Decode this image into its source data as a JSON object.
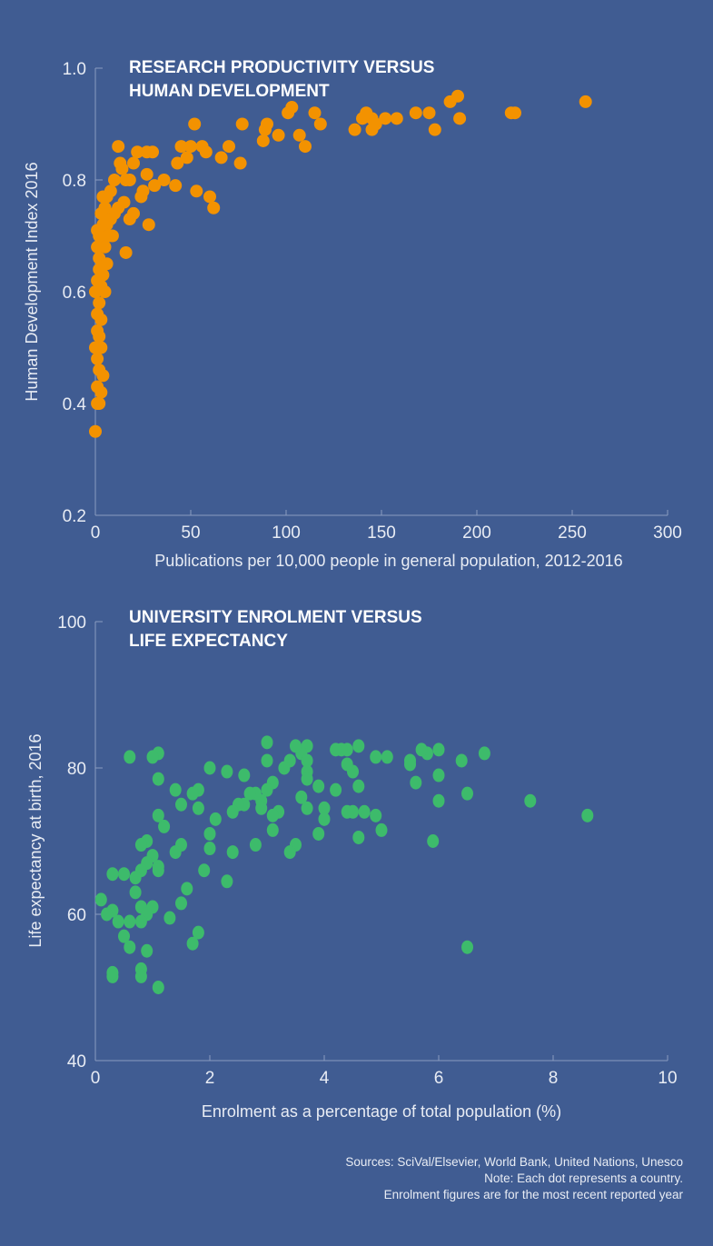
{
  "colors": {
    "background": "#405c92",
    "series_top": "#f39200",
    "series_bottom": "#3dbb6b"
  },
  "chart_data": [
    {
      "type": "scatter",
      "title_lines": [
        "RESEARCH PRODUCTIVITY VERSUS",
        "HUMAN DEVELOPMENT"
      ],
      "xlabel": "Publications per 10,000 people in general population, 2012-2016",
      "ylabel": "Human Development Index 2016",
      "xlim": [
        0,
        300
      ],
      "ylim": [
        0.2,
        1.0
      ],
      "xticks": [
        "0",
        "50",
        "100",
        "150",
        "200",
        "250",
        "300"
      ],
      "yticks": [
        "0.2",
        "0.4",
        "0.6",
        "0.8",
        "1.0"
      ],
      "grid": false,
      "points": [
        [
          257,
          0.94
        ],
        [
          220,
          0.92
        ],
        [
          218,
          0.92
        ],
        [
          190,
          0.95
        ],
        [
          186,
          0.94
        ],
        [
          191,
          0.91
        ],
        [
          178,
          0.89
        ],
        [
          175,
          0.92
        ],
        [
          168,
          0.92
        ],
        [
          158,
          0.91
        ],
        [
          152,
          0.91
        ],
        [
          147,
          0.9
        ],
        [
          145,
          0.91
        ],
        [
          142,
          0.92
        ],
        [
          140,
          0.91
        ],
        [
          145,
          0.89
        ],
        [
          136,
          0.89
        ],
        [
          118,
          0.9
        ],
        [
          115,
          0.92
        ],
        [
          110,
          0.86
        ],
        [
          107,
          0.88
        ],
        [
          103,
          0.93
        ],
        [
          101,
          0.92
        ],
        [
          96,
          0.88
        ],
        [
          90,
          0.9
        ],
        [
          89,
          0.89
        ],
        [
          88,
          0.87
        ],
        [
          77,
          0.9
        ],
        [
          76,
          0.83
        ],
        [
          70,
          0.86
        ],
        [
          66,
          0.84
        ],
        [
          60,
          0.77
        ],
        [
          62,
          0.75
        ],
        [
          58,
          0.85
        ],
        [
          56,
          0.86
        ],
        [
          52,
          0.9
        ],
        [
          50,
          0.86
        ],
        [
          48,
          0.84
        ],
        [
          53,
          0.78
        ],
        [
          45,
          0.86
        ],
        [
          43,
          0.83
        ],
        [
          42,
          0.79
        ],
        [
          36,
          0.8
        ],
        [
          31,
          0.79
        ],
        [
          30,
          0.85
        ],
        [
          27,
          0.85
        ],
        [
          27,
          0.81
        ],
        [
          25,
          0.78
        ],
        [
          28,
          0.72
        ],
        [
          22,
          0.85
        ],
        [
          20,
          0.83
        ],
        [
          18,
          0.8
        ],
        [
          16,
          0.8
        ],
        [
          12,
          0.86
        ],
        [
          13,
          0.83
        ],
        [
          14,
          0.82
        ],
        [
          10,
          0.8
        ],
        [
          8,
          0.78
        ],
        [
          6,
          0.77
        ],
        [
          4,
          0.77
        ],
        [
          24,
          0.77
        ],
        [
          20,
          0.74
        ],
        [
          18,
          0.73
        ],
        [
          15,
          0.76
        ],
        [
          12,
          0.75
        ],
        [
          10,
          0.74
        ],
        [
          8,
          0.73
        ],
        [
          6,
          0.72
        ],
        [
          4,
          0.72
        ],
        [
          3,
          0.7
        ],
        [
          9,
          0.7
        ],
        [
          7,
          0.7
        ],
        [
          16,
          0.67
        ],
        [
          5,
          0.68
        ],
        [
          2,
          0.66
        ],
        [
          6,
          0.65
        ],
        [
          4,
          0.63
        ],
        [
          3,
          0.61
        ],
        [
          5,
          0.6
        ],
        [
          2,
          0.58
        ],
        [
          1,
          0.56
        ],
        [
          3,
          0.55
        ],
        [
          2,
          0.52
        ],
        [
          3,
          0.5
        ],
        [
          1,
          0.48
        ],
        [
          2,
          0.46
        ],
        [
          4,
          0.45
        ],
        [
          1,
          0.43
        ],
        [
          3,
          0.42
        ],
        [
          1,
          0.4
        ],
        [
          2,
          0.4
        ],
        [
          0,
          0.35
        ],
        [
          1,
          0.62
        ],
        [
          2,
          0.64
        ],
        [
          0,
          0.6
        ],
        [
          1,
          0.53
        ],
        [
          0,
          0.5
        ],
        [
          2,
          0.7
        ],
        [
          1,
          0.68
        ],
        [
          3,
          0.74
        ],
        [
          5,
          0.75
        ],
        [
          1,
          0.71
        ]
      ]
    },
    {
      "type": "scatter",
      "title_lines": [
        "UNIVERSITY ENROLMENT VERSUS",
        "LIFE EXPECTANCY"
      ],
      "xlabel": "Enrolment as a percentage of total population (%)",
      "ylabel": "Life expectancy at birth, 2016",
      "xlim": [
        0,
        10
      ],
      "ylim": [
        40,
        100
      ],
      "xticks": [
        "0",
        "2",
        "4",
        "6",
        "8",
        "10"
      ],
      "yticks": [
        "40",
        "60",
        "80",
        "100"
      ],
      "grid": false,
      "points": [
        [
          8.6,
          73.5
        ],
        [
          7.6,
          75.5
        ],
        [
          6.8,
          82
        ],
        [
          6.5,
          76.5
        ],
        [
          6.5,
          55.5
        ],
        [
          6.4,
          81
        ],
        [
          6.0,
          82.5
        ],
        [
          6.0,
          79
        ],
        [
          6.0,
          75.5
        ],
        [
          5.9,
          70
        ],
        [
          5.8,
          82
        ],
        [
          5.7,
          82.5
        ],
        [
          5.6,
          78
        ],
        [
          5.5,
          81
        ],
        [
          5.5,
          80.5
        ],
        [
          5.1,
          81.5
        ],
        [
          4.9,
          81.5
        ],
        [
          4.9,
          73.5
        ],
        [
          5.0,
          71.5
        ],
        [
          4.7,
          74
        ],
        [
          4.6,
          83
        ],
        [
          4.6,
          77.5
        ],
        [
          4.6,
          70.5
        ],
        [
          4.5,
          79.5
        ],
        [
          4.4,
          82.5
        ],
        [
          4.4,
          80.5
        ],
        [
          4.3,
          82.5
        ],
        [
          4.2,
          82.5
        ],
        [
          4.2,
          77
        ],
        [
          4.4,
          74
        ],
        [
          4.5,
          74
        ],
        [
          4.0,
          74.5
        ],
        [
          4.0,
          73
        ],
        [
          3.9,
          77.5
        ],
        [
          3.9,
          71
        ],
        [
          3.7,
          83
        ],
        [
          3.6,
          82
        ],
        [
          3.7,
          81
        ],
        [
          3.7,
          79.5
        ],
        [
          3.7,
          78.5
        ],
        [
          3.6,
          76
        ],
        [
          3.7,
          74.5
        ],
        [
          3.5,
          83
        ],
        [
          3.4,
          81
        ],
        [
          3.3,
          80
        ],
        [
          3.2,
          74
        ],
        [
          3.5,
          69.5
        ],
        [
          3.4,
          68.5
        ],
        [
          3.1,
          73.5
        ],
        [
          3.0,
          83.5
        ],
        [
          3.0,
          81
        ],
        [
          3.1,
          78
        ],
        [
          3.0,
          77
        ],
        [
          2.9,
          75.5
        ],
        [
          2.8,
          76.5
        ],
        [
          2.9,
          74.5
        ],
        [
          3.1,
          71.5
        ],
        [
          2.8,
          69.5
        ],
        [
          2.7,
          76.5
        ],
        [
          2.6,
          75
        ],
        [
          2.6,
          79
        ],
        [
          2.5,
          75
        ],
        [
          2.4,
          74
        ],
        [
          2.4,
          68.5
        ],
        [
          2.3,
          79.5
        ],
        [
          2.3,
          64.5
        ],
        [
          2.1,
          73
        ],
        [
          2.0,
          80
        ],
        [
          2.0,
          71
        ],
        [
          2.0,
          69
        ],
        [
          1.9,
          66
        ],
        [
          1.8,
          77
        ],
        [
          1.7,
          76.5
        ],
        [
          1.8,
          74.5
        ],
        [
          1.8,
          57.5
        ],
        [
          1.7,
          56
        ],
        [
          1.6,
          63.5
        ],
        [
          1.5,
          75
        ],
        [
          1.5,
          69.5
        ],
        [
          1.5,
          61.5
        ],
        [
          1.4,
          77
        ],
        [
          1.4,
          68.5
        ],
        [
          1.3,
          59.5
        ],
        [
          1.2,
          72
        ],
        [
          1.1,
          82
        ],
        [
          1.0,
          81.5
        ],
        [
          1.1,
          78.5
        ],
        [
          1.1,
          73.5
        ],
        [
          1.0,
          68
        ],
        [
          1.1,
          66.5
        ],
        [
          1.1,
          66
        ],
        [
          0.9,
          67
        ],
        [
          0.9,
          70
        ],
        [
          0.8,
          69.5
        ],
        [
          0.8,
          66
        ],
        [
          0.7,
          65
        ],
        [
          0.7,
          63
        ],
        [
          0.8,
          61
        ],
        [
          1.0,
          61
        ],
        [
          0.9,
          60
        ],
        [
          0.8,
          59
        ],
        [
          0.6,
          59
        ],
        [
          0.6,
          81.5
        ],
        [
          0.6,
          55.5
        ],
        [
          0.5,
          65.5
        ],
        [
          0.5,
          57
        ],
        [
          0.4,
          59
        ],
        [
          0.3,
          65.5
        ],
        [
          0.3,
          60.5
        ],
        [
          0.2,
          60
        ],
        [
          0.1,
          62
        ],
        [
          0.3,
          51.5
        ],
        [
          0.3,
          52
        ],
        [
          0.8,
          52.5
        ],
        [
          0.8,
          51.5
        ],
        [
          1.1,
          50
        ],
        [
          0.9,
          55
        ]
      ]
    }
  ],
  "footer": {
    "sources": "Sources: SciVal/Elsevier, World Bank, United Nations, Unesco",
    "note": "Note: Each dot represents a country.",
    "enrolment_note": "Enrolment figures are for the most recent reported year"
  }
}
